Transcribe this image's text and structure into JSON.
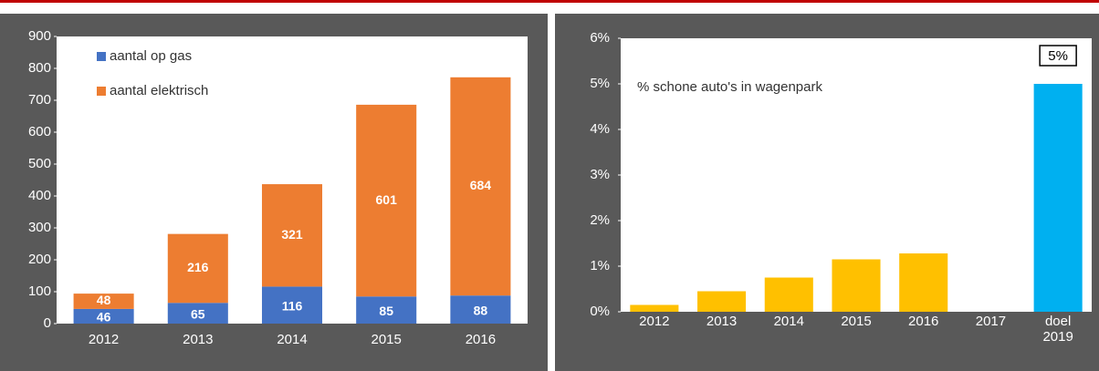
{
  "chart_data": [
    {
      "type": "bar",
      "stacked": true,
      "categories": [
        "2012",
        "2013",
        "2014",
        "2015",
        "2016"
      ],
      "series": [
        {
          "name": "aantal op gas",
          "color": "#4472c4",
          "values": [
            46,
            65,
            116,
            85,
            88
          ]
        },
        {
          "name": "aantal elektrisch",
          "color": "#ed7d31",
          "values": [
            48,
            216,
            321,
            601,
            684
          ]
        }
      ],
      "ylim": [
        0,
        900
      ],
      "yticks": [
        0,
        100,
        200,
        300,
        400,
        500,
        600,
        700,
        800,
        900
      ],
      "legend": "upper left"
    },
    {
      "type": "bar",
      "title": "% schone auto's  in wagenpark",
      "categories": [
        "2012",
        "2013",
        "2014",
        "2015",
        "2016",
        "2017",
        "doel 2019"
      ],
      "values": [
        0.15,
        0.45,
        0.75,
        1.15,
        1.28,
        null,
        5
      ],
      "value_labels": [
        null,
        null,
        null,
        null,
        null,
        null,
        "5%"
      ],
      "colors": [
        "#ffc000",
        "#ffc000",
        "#ffc000",
        "#ffc000",
        "#ffc000",
        "#ffc000",
        "#00b0f0"
      ],
      "ylim": [
        0,
        6
      ],
      "yticks": [
        {
          "value": 0,
          "label": "0%"
        },
        {
          "value": 1,
          "label": "1%"
        },
        {
          "value": 2,
          "label": "2%"
        },
        {
          "value": 3,
          "label": "3%"
        },
        {
          "value": 4,
          "label": "4%"
        },
        {
          "value": 5,
          "label": "5%"
        },
        {
          "value": 6,
          "label": "6%"
        }
      ]
    }
  ]
}
